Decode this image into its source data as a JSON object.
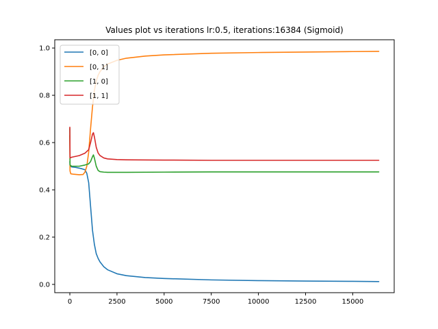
{
  "chart_data": {
    "type": "line",
    "title": "Values plot vs iterations lr:0.5, iterations:16384 (Sigmoid)",
    "xlabel": "",
    "ylabel": "",
    "xlim": [
      -800,
      17200
    ],
    "ylim": [
      -0.035,
      1.035
    ],
    "x_ticks": [
      0,
      2500,
      5000,
      7500,
      10000,
      12500,
      15000
    ],
    "x_tick_labels": [
      "0",
      "2500",
      "5000",
      "7500",
      "10000",
      "12500",
      "15000"
    ],
    "y_ticks": [
      0.0,
      0.2,
      0.4,
      0.6,
      0.8,
      1.0
    ],
    "y_tick_labels": [
      "0.0",
      "0.2",
      "0.4",
      "0.6",
      "0.8",
      "1.0"
    ],
    "grid": false,
    "legend_position": "upper-left",
    "series": [
      {
        "name": "[0, 0]",
        "color": "#1f77b4",
        "x": [
          0,
          10,
          100,
          300,
          600,
          800,
          900,
          1000,
          1100,
          1200,
          1300,
          1400,
          1500,
          1600,
          1800,
          2000,
          2500,
          3000,
          4000,
          5000,
          7500,
          10000,
          12500,
          15000,
          16384
        ],
        "y": [
          0.52,
          0.5,
          0.497,
          0.495,
          0.49,
          0.485,
          0.47,
          0.43,
          0.33,
          0.23,
          0.17,
          0.13,
          0.11,
          0.095,
          0.075,
          0.062,
          0.045,
          0.037,
          0.029,
          0.025,
          0.019,
          0.016,
          0.014,
          0.013,
          0.012
        ]
      },
      {
        "name": "[0, 1]",
        "color": "#ff7f0e",
        "x": [
          0,
          10,
          50,
          200,
          500,
          700,
          800,
          900,
          1000,
          1100,
          1200,
          1300,
          1400,
          1500,
          1600,
          1800,
          2000,
          2500,
          3000,
          4000,
          5000,
          7500,
          10000,
          12500,
          15000,
          16384
        ],
        "y": [
          0.63,
          0.48,
          0.468,
          0.466,
          0.464,
          0.465,
          0.475,
          0.5,
          0.56,
          0.66,
          0.75,
          0.82,
          0.86,
          0.885,
          0.9,
          0.92,
          0.932,
          0.948,
          0.957,
          0.966,
          0.971,
          0.978,
          0.981,
          0.983,
          0.985,
          0.986
        ]
      },
      {
        "name": "[1, 0]",
        "color": "#2ca02c",
        "x": [
          0,
          10,
          100,
          500,
          800,
          1000,
          1100,
          1200,
          1250,
          1300,
          1400,
          1500,
          1600,
          1800,
          2000,
          2500,
          3000,
          5000,
          7500,
          10000,
          12500,
          15000,
          16384
        ],
        "y": [
          0.66,
          0.505,
          0.5,
          0.5,
          0.505,
          0.51,
          0.52,
          0.54,
          0.548,
          0.535,
          0.5,
          0.482,
          0.477,
          0.475,
          0.474,
          0.474,
          0.474,
          0.475,
          0.476,
          0.476,
          0.476,
          0.476,
          0.476
        ]
      },
      {
        "name": "[1, 1]",
        "color": "#d62728",
        "x": [
          0,
          10,
          100,
          500,
          800,
          1000,
          1100,
          1200,
          1250,
          1300,
          1400,
          1500,
          1600,
          1800,
          2000,
          2500,
          3000,
          5000,
          7500,
          10000,
          12500,
          15000,
          16384
        ],
        "y": [
          0.665,
          0.535,
          0.538,
          0.545,
          0.555,
          0.57,
          0.6,
          0.635,
          0.642,
          0.625,
          0.58,
          0.556,
          0.545,
          0.535,
          0.531,
          0.528,
          0.527,
          0.526,
          0.525,
          0.525,
          0.525,
          0.525,
          0.525
        ]
      }
    ]
  }
}
